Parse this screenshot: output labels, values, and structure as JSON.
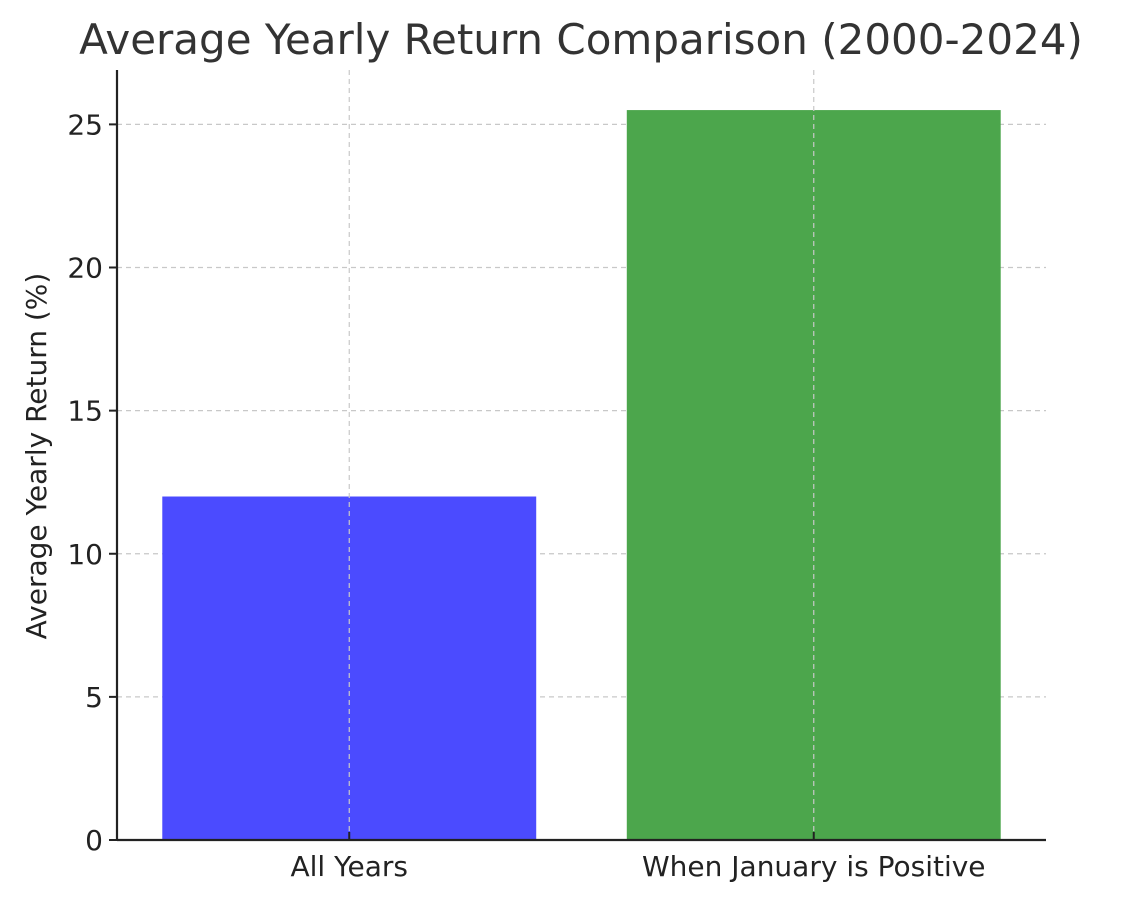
{
  "chart_data": {
    "type": "bar",
    "title": "Average Yearly Return Comparison (2000-2024)",
    "xlabel": "",
    "ylabel": "Average Yearly Return (%)",
    "categories": [
      "All Years",
      "When January is Positive"
    ],
    "values": [
      12.0,
      25.5
    ],
    "colors": [
      "#4b4bff",
      "#4ca64c"
    ],
    "ylim": [
      0,
      26.9
    ],
    "yticks": [
      0,
      5,
      10,
      15,
      20,
      25
    ],
    "grid": true,
    "legend": "none"
  }
}
